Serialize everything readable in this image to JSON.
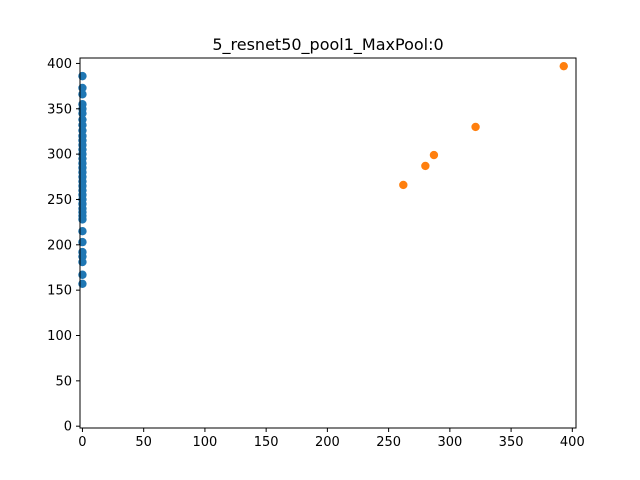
{
  "chart_data": {
    "type": "scatter",
    "title": "5_resnet50_pool1_MaxPool:0",
    "xlabel": "",
    "ylabel": "",
    "xlim": [
      -2,
      403
    ],
    "ylim": [
      -2,
      406
    ],
    "xticks": [
      0,
      50,
      100,
      150,
      200,
      250,
      300,
      350,
      400
    ],
    "yticks": [
      0,
      50,
      100,
      150,
      200,
      250,
      300,
      350,
      400
    ],
    "grid": false,
    "series": [
      {
        "color": "#1f77b4",
        "points": [
          [
            0,
            386
          ],
          [
            0,
            373
          ],
          [
            0,
            366
          ],
          [
            0,
            355
          ],
          [
            0,
            350
          ],
          [
            0,
            345
          ],
          [
            0,
            338
          ],
          [
            0,
            332
          ],
          [
            0,
            326
          ],
          [
            0,
            320
          ],
          [
            0,
            315
          ],
          [
            0,
            310
          ],
          [
            0,
            305
          ],
          [
            0,
            300
          ],
          [
            0,
            295
          ],
          [
            0,
            290
          ],
          [
            0,
            285
          ],
          [
            0,
            280
          ],
          [
            0,
            275
          ],
          [
            0,
            270
          ],
          [
            0,
            265
          ],
          [
            0,
            260
          ],
          [
            0,
            255
          ],
          [
            0,
            250
          ],
          [
            0,
            245
          ],
          [
            0,
            240
          ],
          [
            0,
            236
          ],
          [
            0,
            232
          ],
          [
            0,
            228
          ],
          [
            0,
            215
          ],
          [
            0,
            203
          ],
          [
            0,
            192
          ],
          [
            0,
            187
          ],
          [
            0,
            181
          ],
          [
            0,
            167
          ],
          [
            0,
            157
          ]
        ]
      },
      {
        "color": "#ff7f0e",
        "points": [
          [
            262,
            266
          ],
          [
            280,
            287
          ],
          [
            287,
            299
          ],
          [
            321,
            330
          ],
          [
            393,
            397
          ]
        ]
      }
    ]
  }
}
